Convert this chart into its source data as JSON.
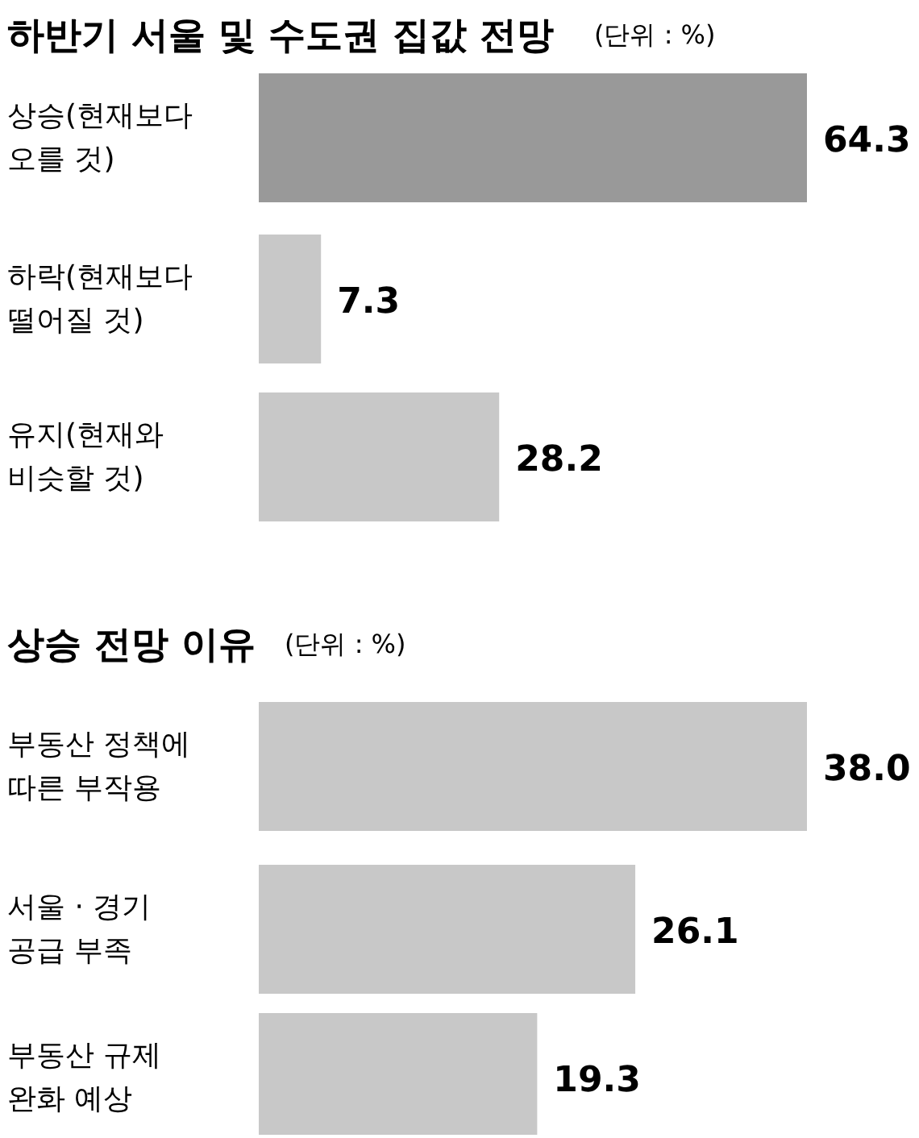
{
  "chart_data": [
    {
      "type": "bar",
      "orientation": "horizontal",
      "title": "하반기 서울 및 수도권 집값 전망",
      "subtitle": "(단위 : %)",
      "categories": [
        "상승(현재보다\n오를 것)",
        "하락(현재보다\n떨어질 것)",
        "유지(현재와\n비슷할 것)"
      ],
      "values": [
        64.3,
        7.3,
        28.2
      ],
      "colors": [
        "#999999",
        "#c8c8c8",
        "#c8c8c8"
      ],
      "value_labels": [
        "64.3",
        "7.3",
        "28.2"
      ]
    },
    {
      "type": "bar",
      "orientation": "horizontal",
      "title": "상승 전망 이유",
      "subtitle": "(단위 : %)",
      "categories": [
        "부동산 정책에\n따른 부작용",
        "서울 · 경기\n공급 부족",
        "부동산 규제\n완화 예상"
      ],
      "values": [
        38.0,
        26.1,
        19.3
      ],
      "colors": [
        "#c8c8c8",
        "#c8c8c8",
        "#c8c8c8"
      ],
      "value_labels": [
        "38.0",
        "26.1",
        "19.3"
      ]
    }
  ]
}
